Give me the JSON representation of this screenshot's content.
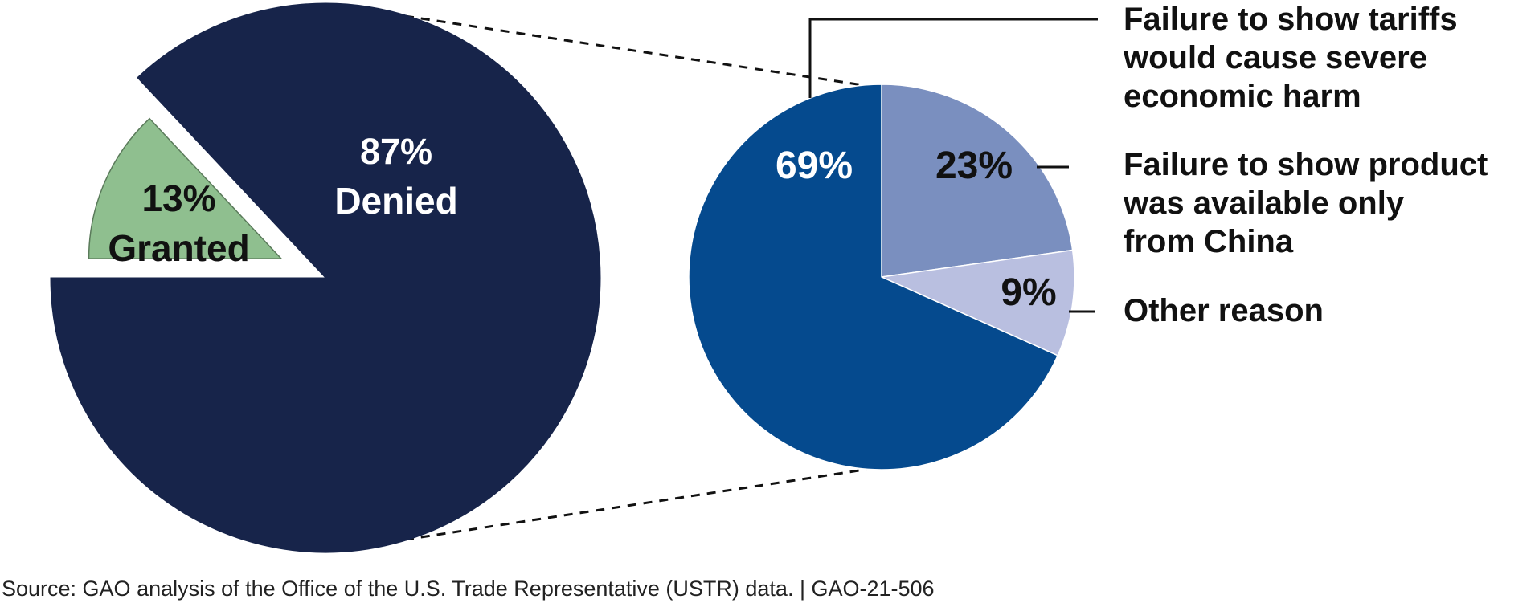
{
  "chart_data": [
    {
      "type": "pie",
      "title": "",
      "slices": [
        {
          "label": "Granted",
          "value": 13,
          "value_label": "13%",
          "color": "#8fbf8f",
          "exploded": true
        },
        {
          "label": "Denied",
          "value": 87,
          "value_label": "87%",
          "color": "#17244a",
          "exploded": false
        }
      ]
    },
    {
      "type": "pie",
      "title": "",
      "breakdown_of": "Denied",
      "slices": [
        {
          "label": "Failure to show product was available only from China",
          "value": 23,
          "value_label": "23%",
          "color": "#7a8fbf"
        },
        {
          "label": "Other reason",
          "value": 9,
          "value_label": "9%",
          "color": "#b9bfe0"
        },
        {
          "label": "Failure to show tariffs would cause severe economic harm",
          "value": 69,
          "value_label": "69%",
          "color": "#054a8e"
        }
      ]
    }
  ],
  "callouts": [
    {
      "lines": [
        "Failure to show tariffs",
        "would cause severe",
        "economic harm"
      ]
    },
    {
      "lines": [
        "Failure to show product",
        "was available only",
        "from China"
      ]
    },
    {
      "lines": [
        "Other reason"
      ]
    }
  ],
  "source_note": "Source: GAO analysis of the Office of the U.S. Trade Representative (USTR) data. | GAO-21-506"
}
